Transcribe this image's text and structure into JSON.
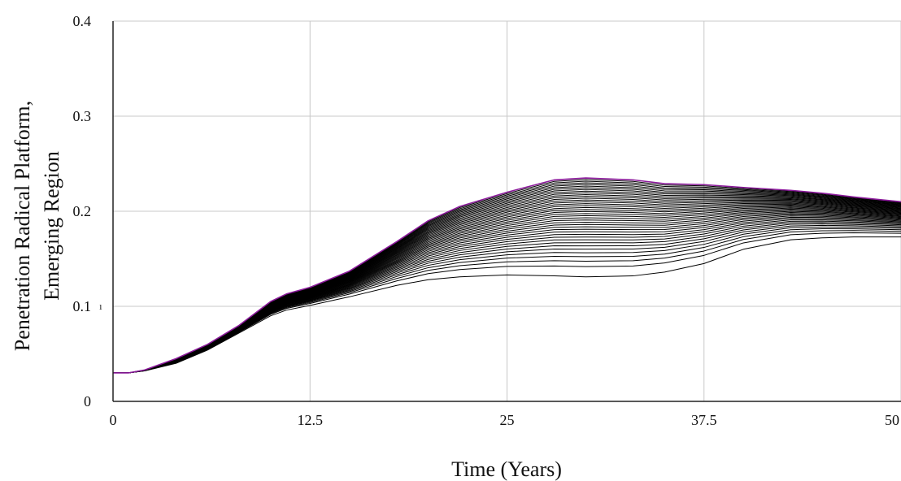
{
  "chart_data": {
    "type": "line",
    "xlabel": "Time (Years)",
    "ylabel_line1": "Penetration Radical Platform,",
    "ylabel_line2": "Emerging Region",
    "xlim": [
      0,
      50
    ],
    "ylim": [
      0,
      0.4
    ],
    "x_ticks": [
      0,
      12.5,
      25,
      37.5,
      50
    ],
    "x_tick_labels": [
      "0",
      "12.5",
      "25",
      "37.5",
      "50"
    ],
    "y_ticks": [
      0,
      0.1,
      0.2,
      0.3,
      0.4
    ],
    "y_tick_labels": [
      "0",
      "0.1",
      "0.2",
      "0.3",
      "0.4"
    ],
    "stray_mark": "ı",
    "grid": true,
    "legend": "none",
    "series_count": 40,
    "line_color": "#000000",
    "top_line_color": "#8b1a9b",
    "x": [
      0,
      1,
      2,
      4,
      6,
      8,
      10,
      11,
      12.5,
      15,
      18,
      20,
      22,
      25,
      28,
      30,
      33,
      35,
      37.5,
      40,
      43,
      45,
      47,
      50
    ],
    "envelope_upper": [
      0.03,
      0.03,
      0.033,
      0.045,
      0.06,
      0.08,
      0.105,
      0.113,
      0.12,
      0.137,
      0.168,
      0.19,
      0.205,
      0.22,
      0.233,
      0.235,
      0.233,
      0.229,
      0.228,
      0.225,
      0.222,
      0.219,
      0.215,
      0.21
    ],
    "envelope_lower": [
      0.03,
      0.03,
      0.032,
      0.04,
      0.054,
      0.072,
      0.09,
      0.096,
      0.101,
      0.11,
      0.122,
      0.128,
      0.131,
      0.133,
      0.132,
      0.131,
      0.132,
      0.136,
      0.145,
      0.16,
      0.17,
      0.172,
      0.173,
      0.173
    ]
  }
}
